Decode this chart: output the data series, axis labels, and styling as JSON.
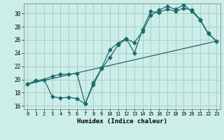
{
  "xlabel": "Humidex (Indice chaleur)",
  "bg_color": "#cceee8",
  "line_color": "#1a6b6b",
  "grid_color": "#aacccc",
  "xlim": [
    -0.5,
    23.5
  ],
  "ylim": [
    15.5,
    31.5
  ],
  "xticks": [
    0,
    1,
    2,
    3,
    4,
    5,
    6,
    7,
    8,
    9,
    10,
    11,
    12,
    13,
    14,
    15,
    16,
    17,
    18,
    19,
    20,
    21,
    22,
    23
  ],
  "yticks": [
    16,
    18,
    20,
    22,
    24,
    26,
    28,
    30
  ],
  "line1_x": [
    0,
    1,
    2,
    3,
    4,
    5,
    6,
    7,
    8,
    9,
    10,
    11,
    12,
    13,
    14,
    15,
    16,
    17,
    18,
    19,
    20,
    21,
    22,
    23
  ],
  "line1_y": [
    19.3,
    19.8,
    20.0,
    20.5,
    20.8,
    20.8,
    20.9,
    16.3,
    19.2,
    21.6,
    23.3,
    25.2,
    26.1,
    25.6,
    27.3,
    29.7,
    30.5,
    31.1,
    30.6,
    31.3,
    30.3,
    29.0,
    26.9,
    25.8
  ],
  "line2_x": [
    0,
    1,
    2,
    3,
    4,
    5,
    6,
    7,
    8,
    9,
    10,
    11,
    12,
    13,
    14,
    15,
    16,
    17,
    18,
    19,
    20,
    21,
    22,
    23
  ],
  "line2_y": [
    19.3,
    19.8,
    20.0,
    17.4,
    17.2,
    17.3,
    17.1,
    16.3,
    19.5,
    21.7,
    24.5,
    25.5,
    26.2,
    24.0,
    27.6,
    30.3,
    30.1,
    30.7,
    30.3,
    30.8,
    30.5,
    29.1,
    27.0,
    25.8
  ],
  "line3_x": [
    0,
    23
  ],
  "line3_y": [
    19.3,
    25.8
  ],
  "marker": "D",
  "marker_size": 2.5,
  "linewidth": 0.9
}
